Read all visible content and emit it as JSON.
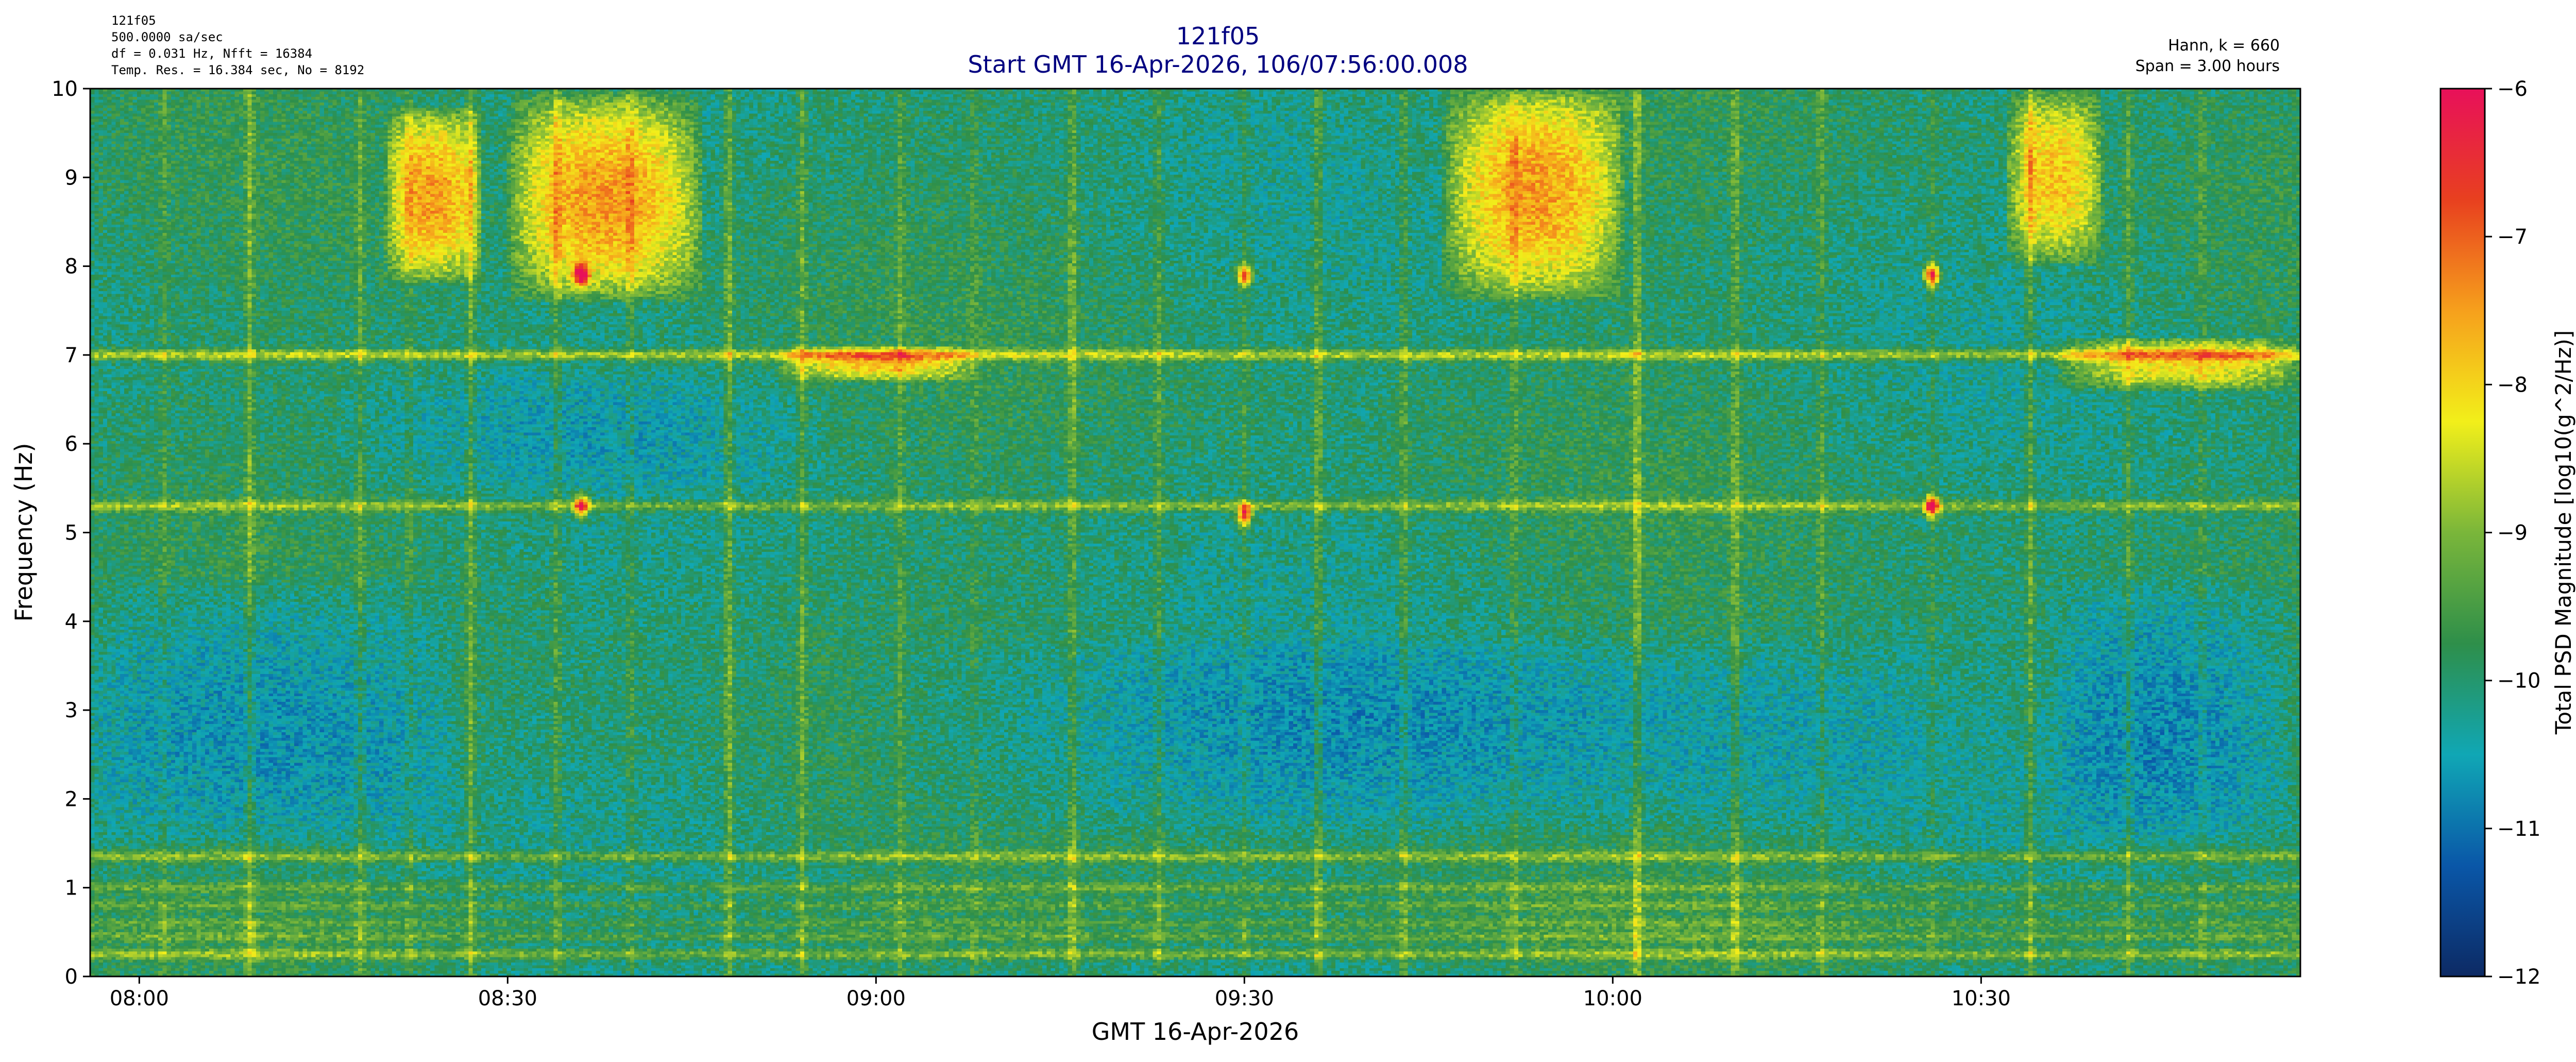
{
  "header": {
    "left_lines": [
      "121f05",
      "500.0000 sa/sec",
      "df = 0.031 Hz,  Nfft = 16384",
      "Temp. Res. = 16.384 sec, No = 8192"
    ],
    "title_line1": "121f05",
    "title_line2": "Start GMT 16-Apr-2026, 106/07:56:00.008",
    "right_lines": [
      "Hann, k = 660",
      "Span = 3.00 hours"
    ]
  },
  "chart_data": {
    "type": "heatmap",
    "title": "121f05",
    "subtitle": "Start GMT 16-Apr-2026, 106/07:56:00.008",
    "xlabel": "GMT 16-Apr-2026",
    "ylabel": "Frequency (Hz)",
    "colorbar_label": "Total PSD Magnitude [log10(g^2/Hz)]",
    "x_range_minutes_after_start": [
      0,
      180
    ],
    "xlim_gmt": [
      "07:56:00",
      "10:56:00"
    ],
    "ylim": [
      0,
      10
    ],
    "clim": [
      -12,
      -6
    ],
    "x_ticks": [
      "08:00",
      "08:30",
      "09:00",
      "09:30",
      "10:00",
      "10:30"
    ],
    "x_tick_minutes": [
      4,
      34,
      64,
      94,
      124,
      154
    ],
    "y_ticks": [
      0,
      1,
      2,
      3,
      4,
      5,
      6,
      7,
      8,
      9,
      10
    ],
    "cbar_ticks": [
      -12,
      -11,
      -10,
      -9,
      -8,
      -7,
      -6
    ],
    "cbar_tick_labels": [
      "−12",
      "−11",
      "−10",
      "−9",
      "−8",
      "−7",
      "−6"
    ],
    "colormap_stops": [
      "#0d2a64",
      "#0a57a8",
      "#10a7b5",
      "#2e8f4a",
      "#7ab63a",
      "#f2ef1a",
      "#f6a01c",
      "#e8401f",
      "#e8105a"
    ],
    "background_level": -10.0,
    "features": {
      "horizontal_bands": [
        {
          "freq_hz": 0.25,
          "level": -9.0
        },
        {
          "freq_hz": 0.45,
          "level": -9.3
        },
        {
          "freq_hz": 0.6,
          "level": -9.4
        },
        {
          "freq_hz": 0.8,
          "level": -9.4
        },
        {
          "freq_hz": 1.0,
          "level": -9.3
        },
        {
          "freq_hz": 1.35,
          "level": -9.0
        },
        {
          "freq_hz": 5.3,
          "level": -8.9
        },
        {
          "freq_hz": 7.0,
          "level": -8.6
        }
      ],
      "hot_regions": [
        {
          "t_start_min": 24,
          "t_end_min": 32,
          "f_low_hz": 7.8,
          "f_high_hz": 9.8,
          "level": -7.6
        },
        {
          "t_start_min": 34,
          "t_end_min": 50,
          "f_low_hz": 7.6,
          "f_high_hz": 10.0,
          "level": -7.4
        },
        {
          "t_start_min": 110,
          "t_end_min": 125,
          "f_low_hz": 7.6,
          "f_high_hz": 10.0,
          "level": -7.5
        },
        {
          "t_start_min": 156,
          "t_end_min": 164,
          "f_low_hz": 8.0,
          "f_high_hz": 10.0,
          "level": -7.8
        },
        {
          "t_start_min": 160,
          "t_end_min": 180,
          "f_low_hz": 6.6,
          "f_high_hz": 7.2,
          "level": -8.0
        },
        {
          "t_start_min": 56,
          "t_end_min": 72,
          "f_low_hz": 6.7,
          "f_high_hz": 7.1,
          "level": -8.1
        }
      ],
      "cool_regions": [
        {
          "t_start_min": 0,
          "t_end_min": 30,
          "f_low_hz": 1.5,
          "f_high_hz": 4.5,
          "level": -10.8
        },
        {
          "t_start_min": 62,
          "t_end_min": 150,
          "f_low_hz": 1.6,
          "f_high_hz": 3.8,
          "level": -10.6
        },
        {
          "t_start_min": 160,
          "t_end_min": 180,
          "f_low_hz": 1.5,
          "f_high_hz": 4.5,
          "level": -10.8
        },
        {
          "t_start_min": 20,
          "t_end_min": 60,
          "f_low_hz": 5.5,
          "f_high_hz": 6.8,
          "level": -10.3
        }
      ],
      "vertical_streaks_minutes": [
        6,
        13,
        22,
        26,
        31,
        38,
        44,
        52,
        58,
        66,
        72,
        80,
        87,
        94,
        100,
        107,
        116,
        126,
        134,
        141,
        150,
        158,
        166,
        172
      ],
      "hot_spots": [
        {
          "t_min": 40,
          "freq_hz": 7.9,
          "level": -6.5
        },
        {
          "t_min": 40,
          "freq_hz": 5.3,
          "level": -6.6
        },
        {
          "t_min": 94,
          "freq_hz": 5.2,
          "level": -6.7
        },
        {
          "t_min": 94,
          "freq_hz": 7.9,
          "level": -6.8
        },
        {
          "t_min": 150,
          "freq_hz": 7.9,
          "level": -6.5
        },
        {
          "t_min": 150,
          "freq_hz": 5.3,
          "level": -6.6
        }
      ]
    }
  }
}
